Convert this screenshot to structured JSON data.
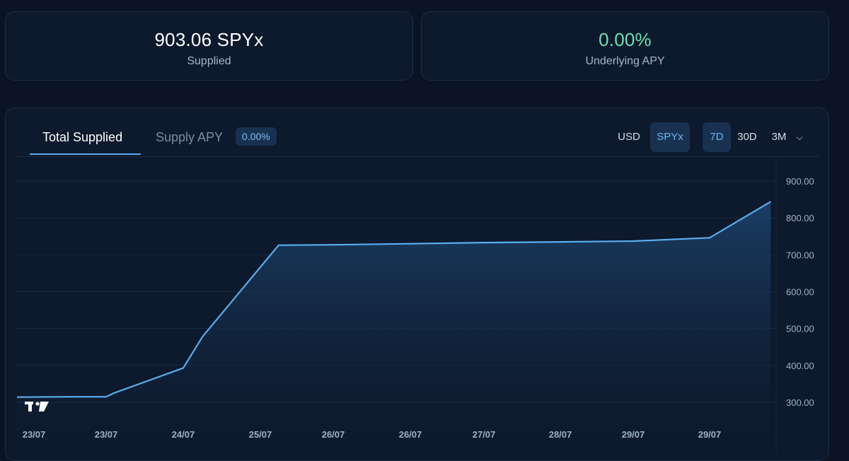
{
  "stats": {
    "supplied": {
      "value": "903.06 SPYx",
      "label": "Supplied"
    },
    "apy": {
      "value": "0.00%",
      "label": "Underlying APY"
    }
  },
  "chart_panel": {
    "tabs": [
      {
        "label": "Total Supplied",
        "active": true
      },
      {
        "label": "Supply APY",
        "active": false
      }
    ],
    "apy_badge": "0.00%",
    "currency_options": [
      {
        "label": "USD",
        "selected": false
      },
      {
        "label": "SPYx",
        "selected": true
      }
    ],
    "range_options": [
      {
        "label": "7D",
        "selected": true
      },
      {
        "label": "30D",
        "selected": false
      },
      {
        "label": "3M",
        "selected": false
      }
    ]
  },
  "colors": {
    "accent": "#5aaef0",
    "apy_green": "#6fe0b0",
    "background": "#0a1424",
    "card": "#0d192c"
  },
  "chart_data": {
    "type": "area",
    "x_tick_labels": [
      "23/07",
      "23/07",
      "24/07",
      "25/07",
      "26/07",
      "26/07",
      "27/07",
      "28/07",
      "29/07",
      "29/07"
    ],
    "y_tick_labels": [
      "900.00",
      "800.00",
      "700.00",
      "600.00",
      "500.00",
      "400.00",
      "300.00"
    ],
    "ylim": [
      280,
      940
    ],
    "grid": true,
    "x": [
      0,
      0.5,
      1.0,
      1.1,
      2.0,
      2.25,
      3.25,
      4.0,
      5.0,
      6.0,
      7.0,
      8.0,
      9.0,
      9.8
    ],
    "values": [
      314,
      315,
      315,
      325,
      393,
      478,
      726,
      727,
      730,
      733,
      735,
      737,
      746,
      844
    ],
    "series_color": "#5aaef0"
  }
}
